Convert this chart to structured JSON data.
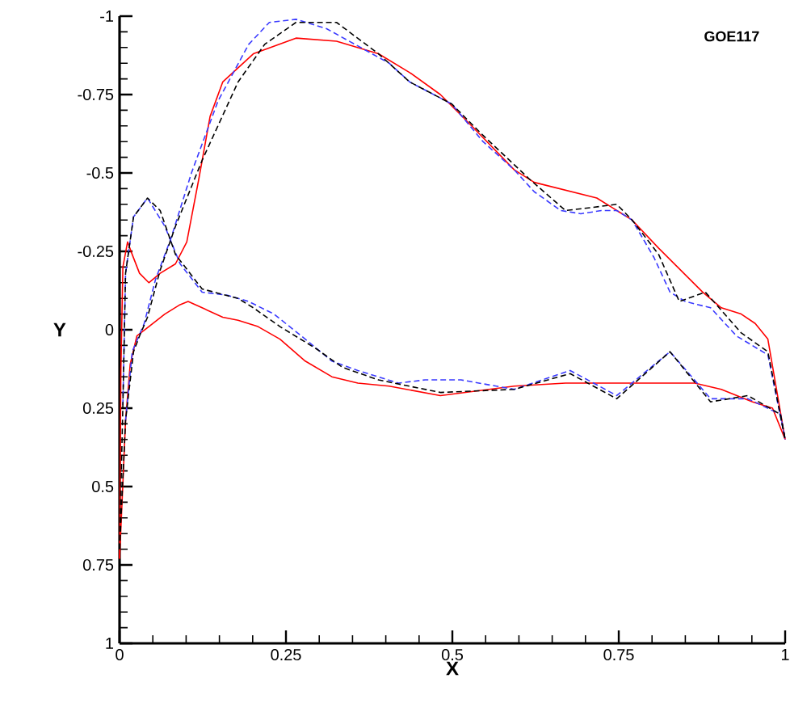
{
  "chart_data": {
    "type": "line",
    "title": "GOE117",
    "xlabel": "X",
    "ylabel": "Y",
    "xlim": [
      0,
      1
    ],
    "ylim": [
      1,
      -1
    ],
    "xticks": [
      0,
      0.25,
      0.5,
      0.75,
      1
    ],
    "yticks": [
      -1,
      -0.75,
      -0.5,
      -0.25,
      0,
      0.25,
      0.5,
      0.75,
      1
    ],
    "series": [
      {
        "color": "#ff0000",
        "line_style": "solid",
        "x": [
          0.0,
          0.002,
          0.005,
          0.012,
          0.019,
          0.03,
          0.044,
          0.061,
          0.084,
          0.101,
          0.119,
          0.136,
          0.155,
          0.201,
          0.265,
          0.326,
          0.389,
          0.436,
          0.482,
          0.529,
          0.593,
          0.623,
          0.717,
          0.77,
          0.81,
          0.876,
          0.904,
          0.934,
          0.955,
          0.974,
          1.0
        ],
        "values": [
          0.73,
          0.13,
          -0.2,
          -0.28,
          -0.24,
          -0.18,
          -0.15,
          -0.18,
          -0.21,
          -0.28,
          -0.48,
          -0.68,
          -0.79,
          -0.88,
          -0.93,
          -0.92,
          -0.88,
          -0.82,
          -0.75,
          -0.65,
          -0.51,
          -0.47,
          -0.42,
          -0.35,
          -0.26,
          -0.12,
          -0.07,
          -0.05,
          -0.02,
          0.03,
          0.35
        ]
      },
      {
        "color": "#ff0000",
        "line_style": "solid",
        "x": [
          0.0,
          0.005,
          0.009,
          0.016,
          0.026,
          0.044,
          0.068,
          0.091,
          0.103,
          0.124,
          0.155,
          0.178,
          0.208,
          0.241,
          0.279,
          0.319,
          0.358,
          0.405,
          0.482,
          0.593,
          0.67,
          0.78,
          0.864,
          0.904,
          0.951,
          0.981,
          1.0
        ],
        "values": [
          0.73,
          0.49,
          0.29,
          0.11,
          0.02,
          -0.01,
          -0.05,
          -0.08,
          -0.09,
          -0.07,
          -0.04,
          -0.03,
          -0.01,
          0.03,
          0.1,
          0.15,
          0.17,
          0.18,
          0.21,
          0.18,
          0.17,
          0.17,
          0.17,
          0.19,
          0.23,
          0.25,
          0.35
        ]
      },
      {
        "color": "#3a3aff",
        "line_style": "dashed",
        "x": [
          0.009,
          0.019,
          0.037,
          0.054,
          0.077,
          0.108,
          0.148,
          0.194,
          0.225,
          0.265,
          0.311,
          0.405,
          0.436,
          0.499,
          0.546,
          0.593,
          0.623,
          0.663,
          0.693,
          0.724,
          0.747,
          0.77,
          0.803,
          0.827,
          0.85,
          0.888,
          0.927,
          0.974,
          1.0
        ],
        "values": [
          0.29,
          0.07,
          -0.02,
          -0.16,
          -0.29,
          -0.5,
          -0.73,
          -0.91,
          -0.98,
          -0.99,
          -0.96,
          -0.85,
          -0.79,
          -0.72,
          -0.6,
          -0.51,
          -0.44,
          -0.38,
          -0.37,
          -0.38,
          -0.38,
          -0.35,
          -0.23,
          -0.12,
          -0.09,
          -0.07,
          0.02,
          0.08,
          0.35
        ]
      },
      {
        "color": "#3a3aff",
        "line_style": "dashed",
        "x": [
          0.005,
          0.009,
          0.021,
          0.042,
          0.068,
          0.091,
          0.124,
          0.162,
          0.194,
          0.232,
          0.279,
          0.319,
          0.358,
          0.419,
          0.459,
          0.513,
          0.593,
          0.677,
          0.747,
          0.827,
          0.888,
          0.944,
          0.993,
          1.0
        ],
        "values": [
          0.24,
          -0.18,
          -0.36,
          -0.42,
          -0.33,
          -0.21,
          -0.12,
          -0.11,
          -0.09,
          -0.05,
          0.03,
          0.1,
          0.13,
          0.17,
          0.16,
          0.16,
          0.19,
          0.13,
          0.21,
          0.07,
          0.22,
          0.22,
          0.27,
          0.35
        ]
      },
      {
        "color": "#000000",
        "line_style": "dashed",
        "x": [
          0.0,
          0.009,
          0.021,
          0.03,
          0.042,
          0.061,
          0.084,
          0.124,
          0.178,
          0.218,
          0.265,
          0.326,
          0.389,
          0.436,
          0.499,
          0.546,
          0.616,
          0.67,
          0.71,
          0.747,
          0.77,
          0.81,
          0.841,
          0.88,
          0.934,
          0.974,
          1.0
        ],
        "values": [
          0.7,
          0.29,
          0.07,
          0.02,
          -0.04,
          -0.19,
          -0.33,
          -0.54,
          -0.79,
          -0.91,
          -0.98,
          -0.98,
          -0.88,
          -0.79,
          -0.72,
          -0.62,
          -0.48,
          -0.38,
          -0.39,
          -0.4,
          -0.35,
          -0.24,
          -0.09,
          -0.12,
          0.01,
          0.07,
          0.35
        ]
      },
      {
        "color": "#000000",
        "line_style": "dashed",
        "x": [
          0.0,
          0.005,
          0.009,
          0.021,
          0.042,
          0.061,
          0.084,
          0.124,
          0.178,
          0.201,
          0.241,
          0.295,
          0.335,
          0.389,
          0.482,
          0.593,
          0.677,
          0.747,
          0.827,
          0.888,
          0.944,
          0.993,
          1.0
        ],
        "values": [
          0.7,
          0.24,
          -0.18,
          -0.36,
          -0.42,
          -0.38,
          -0.24,
          -0.13,
          -0.1,
          -0.07,
          -0.01,
          0.06,
          0.12,
          0.16,
          0.2,
          0.19,
          0.14,
          0.22,
          0.07,
          0.23,
          0.21,
          0.27,
          0.35
        ]
      }
    ]
  }
}
